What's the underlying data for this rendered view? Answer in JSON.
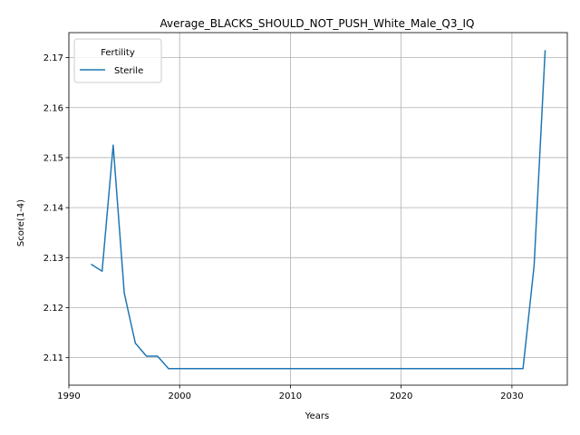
{
  "chart_data": {
    "type": "line",
    "title": "Average_BLACKS_SHOULD_NOT_PUSH_White_Male_Q3_IQ",
    "xlabel": "Years",
    "ylabel": "Score(1-4)",
    "xlim": [
      1990,
      2035
    ],
    "ylim": [
      2.1045,
      2.175
    ],
    "x_ticks": [
      1990,
      2000,
      2010,
      2020,
      2030
    ],
    "y_ticks": [
      2.11,
      2.12,
      2.13,
      2.14,
      2.15,
      2.16,
      2.17
    ],
    "grid": true,
    "legend": {
      "title": "Fertility",
      "placement": "top-left"
    },
    "series": [
      {
        "name": "Sterile",
        "color": "#1f77b4",
        "x": [
          1992,
          1993,
          1994,
          1995,
          1996,
          1997,
          1998,
          1999,
          2000,
          2001,
          2002,
          2003,
          2004,
          2005,
          2006,
          2007,
          2008,
          2009,
          2010,
          2011,
          2012,
          2013,
          2014,
          2015,
          2016,
          2017,
          2018,
          2019,
          2020,
          2021,
          2022,
          2023,
          2024,
          2025,
          2026,
          2027,
          2028,
          2029,
          2030,
          2031,
          2032,
          2033
        ],
        "values": [
          2.1287,
          2.1273,
          2.1525,
          2.1229,
          2.1129,
          2.1103,
          2.1103,
          2.1078,
          2.1078,
          2.1078,
          2.1078,
          2.1078,
          2.1078,
          2.1078,
          2.1078,
          2.1078,
          2.1078,
          2.1078,
          2.1078,
          2.1078,
          2.1078,
          2.1078,
          2.1078,
          2.1078,
          2.1078,
          2.1078,
          2.1078,
          2.1078,
          2.1078,
          2.1078,
          2.1078,
          2.1078,
          2.1078,
          2.1078,
          2.1078,
          2.1078,
          2.1078,
          2.1078,
          2.1078,
          2.1078,
          2.1283,
          2.1715
        ]
      }
    ]
  }
}
